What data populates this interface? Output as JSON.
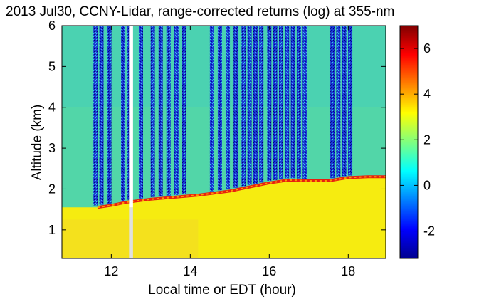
{
  "chart_data": {
    "type": "heatmap",
    "title": "2013 Jul30, CCNY-Lidar, range-corrected returns (log) at 355-nm",
    "xlabel": "Local time or EDT (hour)",
    "ylabel": "Altitude (km)",
    "xlim": [
      10.75,
      18.95
    ],
    "ylim": [
      0.3,
      6.0
    ],
    "xticks": [
      12,
      14,
      16,
      18
    ],
    "yticks": [
      1,
      2,
      3,
      4,
      5,
      6
    ],
    "colorbar": {
      "ticks": [
        -2,
        0,
        2,
        4,
        6
      ],
      "range": [
        -3.2,
        7.0
      ],
      "colormap": "jet"
    },
    "grid": false,
    "boundary_layer_top_km": [
      {
        "x": 11.65,
        "y": 1.55
      },
      {
        "x": 12.0,
        "y": 1.6
      },
      {
        "x": 12.4,
        "y": 1.68
      },
      {
        "x": 13.0,
        "y": 1.75
      },
      {
        "x": 13.6,
        "y": 1.8
      },
      {
        "x": 14.2,
        "y": 1.85
      },
      {
        "x": 14.6,
        "y": 1.9
      },
      {
        "x": 15.0,
        "y": 1.95
      },
      {
        "x": 15.5,
        "y": 2.05
      },
      {
        "x": 16.0,
        "y": 2.15
      },
      {
        "x": 16.5,
        "y": 2.22
      },
      {
        "x": 17.0,
        "y": 2.2
      },
      {
        "x": 17.5,
        "y": 2.2
      },
      {
        "x": 18.0,
        "y": 2.28
      },
      {
        "x": 18.5,
        "y": 2.3
      },
      {
        "x": 18.95,
        "y": 2.3
      }
    ],
    "clear_air_streaks_hour": [
      11.6,
      11.75,
      11.95,
      12.3,
      12.45,
      12.75,
      13.05,
      13.25,
      13.45,
      13.65,
      13.85,
      14.55,
      14.75,
      14.95,
      15.15,
      15.35,
      15.5,
      15.65,
      15.8,
      16.0,
      16.15,
      16.3,
      16.45,
      16.6,
      16.75,
      16.9,
      17.6,
      17.75,
      17.9,
      18.05
    ],
    "data_gap_hour": [
      12.45,
      12.55
    ]
  }
}
